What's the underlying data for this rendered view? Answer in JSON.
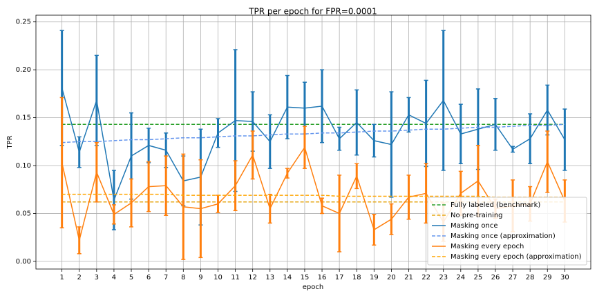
{
  "chart_data": {
    "type": "line",
    "title": "TPR per epoch for FPR=0.0001",
    "x_label": "epoch",
    "y_label": "TPR",
    "x": [
      1,
      2,
      3,
      4,
      5,
      6,
      7,
      8,
      9,
      10,
      11,
      12,
      13,
      14,
      15,
      16,
      17,
      18,
      19,
      20,
      21,
      22,
      23,
      24,
      25,
      26,
      27,
      28,
      29,
      30
    ],
    "xlim": [
      -0.5,
      31.5
    ],
    "xticks": [
      1,
      2,
      3,
      4,
      5,
      6,
      7,
      8,
      9,
      10,
      11,
      12,
      13,
      14,
      15,
      16,
      17,
      18,
      19,
      20,
      21,
      22,
      23,
      24,
      25,
      26,
      27,
      28,
      29,
      30
    ],
    "ylim": [
      -0.008,
      0.257
    ],
    "yticks": [
      {
        "value": 0,
        "label": "0.00"
      },
      0.05,
      {
        "value": 0.1,
        "label": "0.10"
      },
      0.15,
      {
        "value": 0.2,
        "label": "0.20"
      },
      0.25
    ],
    "grid": true,
    "legend": "lower right",
    "series": [
      {
        "name": "Fully labeled (benchmark)",
        "color": "#2ca02c",
        "linestyle": "dashed",
        "values": [
          0.143,
          0.143,
          0.143,
          0.143,
          0.143,
          0.143,
          0.143,
          0.143,
          0.143,
          0.143,
          0.143,
          0.143,
          0.143,
          0.143,
          0.143,
          0.143,
          0.143,
          0.143,
          0.143,
          0.143,
          0.143,
          0.143,
          0.143,
          0.143,
          0.143,
          0.143,
          0.143,
          0.143,
          0.143,
          0.143
        ]
      },
      {
        "name": "No pre-training",
        "color": "#e6a817",
        "linestyle": "dashed",
        "values": [
          0.062,
          0.062,
          0.062,
          0.062,
          0.062,
          0.062,
          0.062,
          0.062,
          0.062,
          0.062,
          0.062,
          0.062,
          0.062,
          0.062,
          0.062,
          0.062,
          0.062,
          0.062,
          0.062,
          0.062,
          0.062,
          0.062,
          0.062,
          0.062,
          0.062,
          0.062,
          0.062,
          0.062,
          0.062,
          0.062
        ]
      },
      {
        "name": "Masking once",
        "color": "#1f77b4",
        "linestyle": "solid",
        "values": [
          0.181,
          0.114,
          0.168,
          0.064,
          0.11,
          0.121,
          0.116,
          0.084,
          0.088,
          0.134,
          0.147,
          0.146,
          0.125,
          0.161,
          0.16,
          0.162,
          0.128,
          0.145,
          0.126,
          0.122,
          0.153,
          0.144,
          0.168,
          0.133,
          0.138,
          0.143,
          0.117,
          0.128,
          0.158,
          0.127
        ],
        "errors": [
          0.06,
          0.016,
          0.047,
          0.031,
          0.045,
          0.018,
          0.018,
          0.026,
          0.05,
          0.015,
          0.074,
          0.031,
          0.028,
          0.033,
          0.027,
          0.038,
          0.012,
          0.034,
          0.017,
          0.055,
          0.018,
          0.045,
          0.073,
          0.031,
          0.042,
          0.027,
          0.003,
          0.026,
          0.026,
          0.032
        ]
      },
      {
        "name": "Masking once (approximation)",
        "color": "#6495ed",
        "linestyle": "dashed",
        "values": [
          0.124,
          0.125,
          0.125,
          0.126,
          0.127,
          0.127,
          0.128,
          0.129,
          0.129,
          0.13,
          0.131,
          0.131,
          0.132,
          0.133,
          0.133,
          0.134,
          0.134,
          0.135,
          0.136,
          0.136,
          0.137,
          0.138,
          0.138,
          0.139,
          0.14,
          0.14,
          0.141,
          0.142,
          0.142,
          0.143
        ]
      },
      {
        "name": "Masking every epoch",
        "color": "#ff7f0e",
        "linestyle": "solid",
        "values": [
          0.103,
          0.022,
          0.093,
          0.049,
          0.061,
          0.078,
          0.079,
          0.057,
          0.055,
          0.06,
          0.079,
          0.111,
          0.055,
          0.092,
          0.119,
          0.058,
          0.05,
          0.089,
          0.033,
          0.044,
          0.067,
          0.071,
          0.041,
          0.071,
          0.084,
          0.055,
          0.058,
          0.06,
          0.104,
          0.063
        ],
        "errors": [
          0.068,
          0.014,
          0.031,
          0.01,
          0.025,
          0.026,
          0.031,
          0.055,
          0.051,
          0.009,
          0.026,
          0.025,
          0.015,
          0.005,
          0.022,
          0.008,
          0.04,
          0.013,
          0.016,
          0.016,
          0.023,
          0.031,
          0.02,
          0.023,
          0.037,
          0.01,
          0.027,
          0.018,
          0.032,
          0.022
        ]
      },
      {
        "name": "Masking every epoch (approximation)",
        "color": "#ffa500",
        "linestyle": "dashed",
        "values": [
          0.07,
          0.07,
          0.07,
          0.07,
          0.07,
          0.07,
          0.07,
          0.069,
          0.069,
          0.069,
          0.069,
          0.069,
          0.069,
          0.069,
          0.069,
          0.069,
          0.068,
          0.068,
          0.068,
          0.068,
          0.068,
          0.068,
          0.068,
          0.068,
          0.068,
          0.067,
          0.067,
          0.067,
          0.067,
          0.067
        ]
      }
    ]
  }
}
